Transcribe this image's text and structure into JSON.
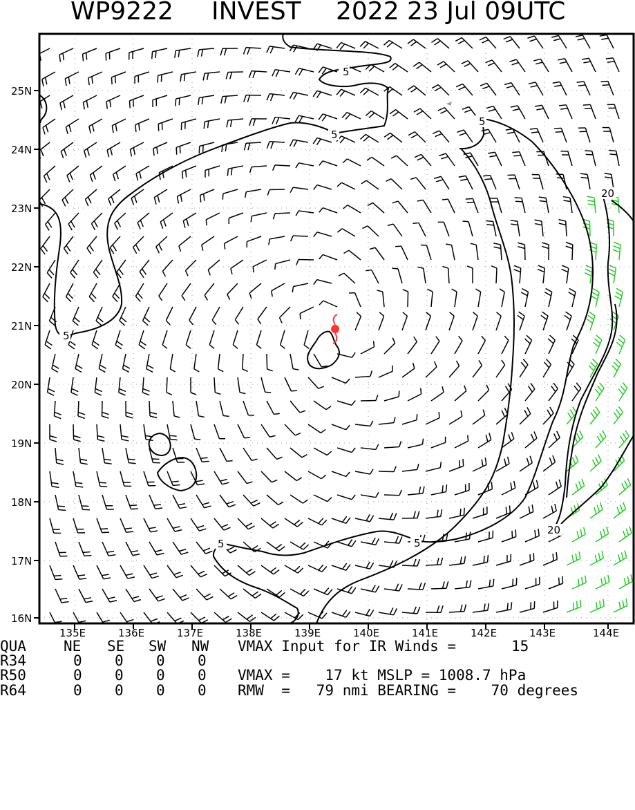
{
  "header": {
    "storm_id": "WP9222",
    "storm_name": "INVEST",
    "datetime": "2022 23 Jul 09UTC"
  },
  "map": {
    "lat_labels": [
      "25N",
      "24N",
      "23N",
      "22N",
      "21N",
      "20N",
      "19N",
      "18N",
      "17N",
      "16N"
    ],
    "lon_labels": [
      "135E",
      "136E",
      "137E",
      "138E",
      "139E",
      "140E",
      "141E",
      "142E",
      "143E",
      "144E"
    ],
    "contour_labels": [
      "5",
      "5",
      "5",
      "5",
      "5",
      "5",
      "20",
      "20"
    ],
    "center_marker_color": "#ff3333",
    "barb_color": "#000000",
    "high_wind_barb_color": "#22cc22",
    "center_icon": "tropical-storm-symbol"
  },
  "footer": {
    "header_row": {
      "qua": "QUA",
      "ne": "NE",
      "se": "SE",
      "sw": "SW",
      "nw": "NW",
      "vmax_input_label": "VMAX Input for IR Winds =",
      "vmax_input_value": "15"
    },
    "r34": {
      "label": "R34",
      "ne": "0",
      "se": "0",
      "sw": "0",
      "nw": "0"
    },
    "r50": {
      "label": "R50",
      "ne": "0",
      "se": "0",
      "sw": "0",
      "nw": "0",
      "vmax_text": "VMAX =    17 kt MSLP = 1008.7 hPa"
    },
    "r64": {
      "label": "R64",
      "ne": "0",
      "se": "0",
      "sw": "0",
      "nw": "0",
      "rmw_text": "RMW  =   79 nmi BEARING =    70 degrees"
    }
  }
}
